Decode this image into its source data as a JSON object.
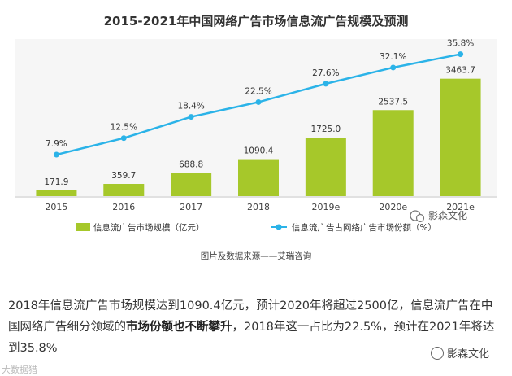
{
  "chart_data": {
    "type": "bar",
    "title": "2015-2021年中国网络广告市场信息流广告规模及预测",
    "categories": [
      "2015",
      "2016",
      "2017",
      "2018",
      "2019e",
      "2020e",
      "2021e"
    ],
    "series": [
      {
        "name": "信息流广告市场规模（亿元）",
        "type": "bar",
        "color": "#a6c82a",
        "values": [
          171.9,
          359.7,
          688.8,
          1090.4,
          1725.0,
          2537.5,
          3463.7
        ],
        "labels": [
          "171.9",
          "359.7",
          "688.8",
          "1090.4",
          "1725.0",
          "2537.5",
          "3463.7"
        ]
      },
      {
        "name": "信息流广告占网络广告市场份额（%）",
        "type": "line",
        "color": "#2bb3e8",
        "values": [
          7.9,
          12.5,
          18.4,
          22.5,
          27.6,
          32.1,
          35.8
        ],
        "labels": [
          "7.9%",
          "12.5%",
          "18.4%",
          "22.5%",
          "27.6%",
          "32.1%",
          "35.8%"
        ]
      }
    ],
    "ylim_bar": [
      0,
      3600
    ],
    "ylim_line": [
      0,
      40
    ],
    "legend_position": "bottom-left",
    "source": "图片及数据来源——艾瑞咨询"
  },
  "watermark": {
    "text": "影森文化"
  },
  "watermark2": {
    "text": "影森文化"
  },
  "watermark3": {
    "text": "大数据猎"
  },
  "paragraph": {
    "part1": "2018年信息流广告市场规模达到1090.4亿元，预计2020年将超过2500亿，信息流广告在中国网络广告细分领域的",
    "bold": "市场份额也不断攀升",
    "part2": "，2018年这一占比为22.5%，预计在2021年将达到35.8%"
  }
}
